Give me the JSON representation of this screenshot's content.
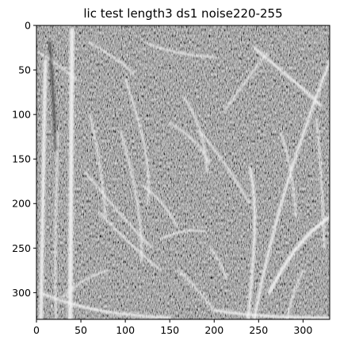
{
  "chart_data": {
    "type": "heatmap",
    "title": "lic test length3 ds1 noise220-255",
    "xlabel": "",
    "ylabel": "",
    "xlim": [
      0,
      330
    ],
    "ylim": [
      330,
      0
    ],
    "y_inverted": true,
    "grid": false,
    "colormap": "grayscale",
    "x_ticks": [
      0,
      50,
      100,
      150,
      200,
      250,
      300
    ],
    "y_ticks": [
      0,
      50,
      100,
      150,
      200,
      250,
      300
    ],
    "x_tick_labels": [
      "0",
      "50",
      "100",
      "150",
      "200",
      "250",
      "300"
    ],
    "y_tick_labels": [
      "0",
      "50",
      "100",
      "150",
      "200",
      "250",
      "300"
    ],
    "image_extent": {
      "width": 330,
      "height": 330
    },
    "colors": {
      "background_mid": "#7a7a7a",
      "streak_light": "#f4f4f4",
      "streak_dark": "#2a2a2a"
    }
  }
}
